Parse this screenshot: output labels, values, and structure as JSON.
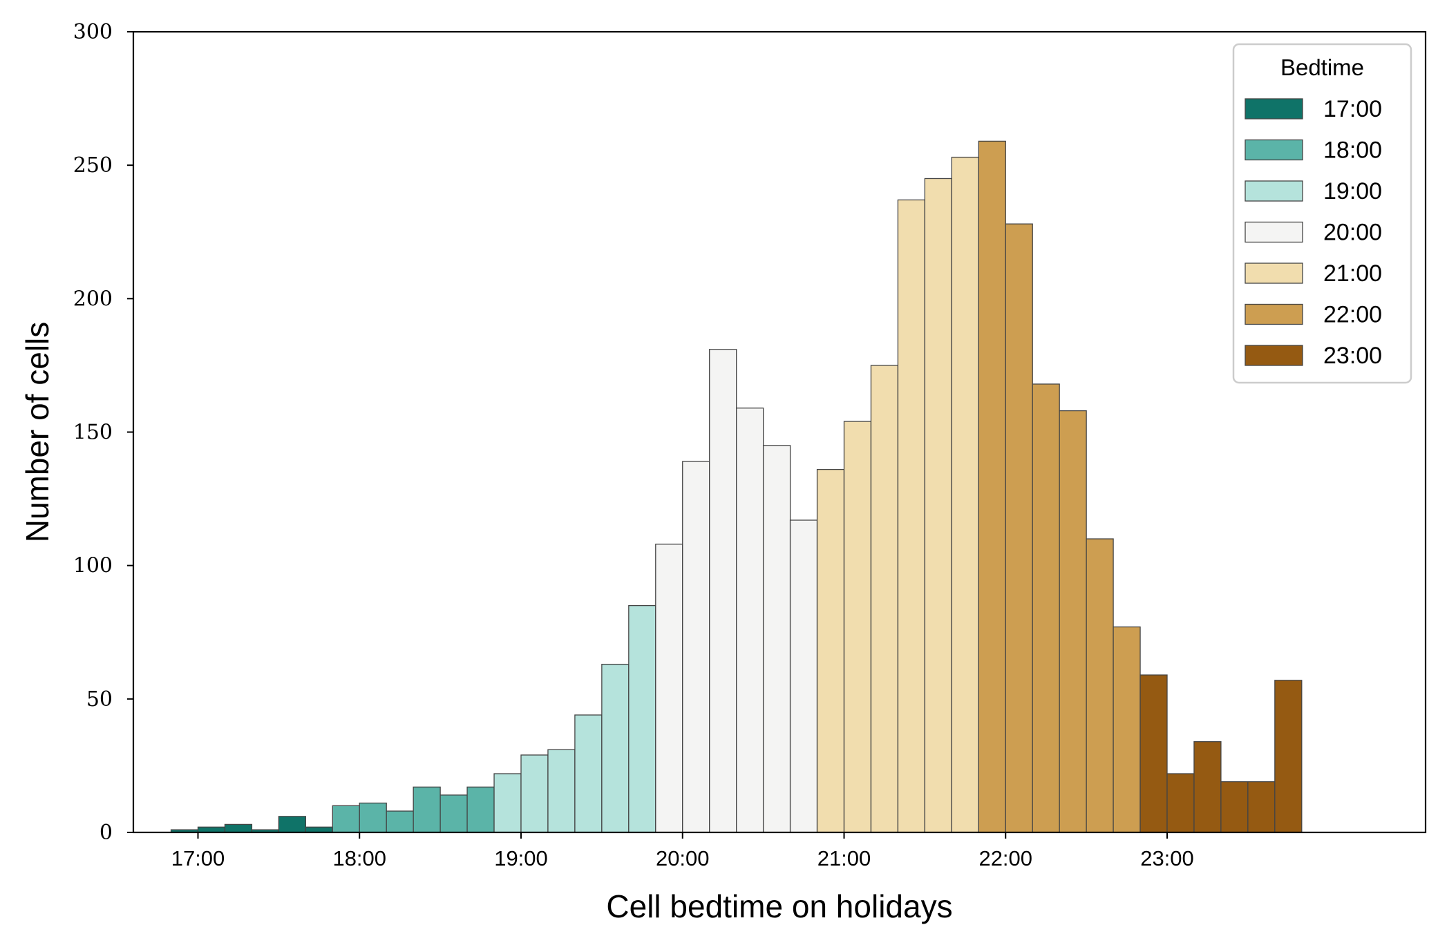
{
  "chart_data": {
    "type": "bar",
    "xlabel": "Cell bedtime on holidays",
    "ylabel": "Number of cells",
    "ylim": [
      0,
      300
    ],
    "yticks": [
      0,
      50,
      100,
      150,
      200,
      250,
      300
    ],
    "xticks": [
      "17:00",
      "18:00",
      "19:00",
      "20:00",
      "21:00",
      "22:00",
      "23:00"
    ],
    "x_hours_range": [
      16.6,
      24.6
    ],
    "bin_width_hours": 0.1667,
    "grid": false,
    "legend": {
      "title": "Bedtime",
      "placement": "top-right",
      "entries": [
        "17:00",
        "18:00",
        "19:00",
        "20:00",
        "21:00",
        "22:00",
        "23:00"
      ]
    },
    "series": [
      {
        "name": "17:00",
        "color": "#0f7368",
        "bins": [
          {
            "start": "16:50",
            "value": 1
          },
          {
            "start": "17:00",
            "value": 2
          },
          {
            "start": "17:10",
            "value": 3
          },
          {
            "start": "17:20",
            "value": 1
          },
          {
            "start": "17:30",
            "value": 6
          },
          {
            "start": "17:40",
            "value": 2
          }
        ]
      },
      {
        "name": "18:00",
        "color": "#5bb4a8",
        "bins": [
          {
            "start": "17:50",
            "value": 10
          },
          {
            "start": "18:00",
            "value": 11
          },
          {
            "start": "18:10",
            "value": 8
          },
          {
            "start": "18:20",
            "value": 17
          },
          {
            "start": "18:30",
            "value": 14
          },
          {
            "start": "18:40",
            "value": 17
          }
        ]
      },
      {
        "name": "19:00",
        "color": "#b5e3dc",
        "bins": [
          {
            "start": "18:50",
            "value": 22
          },
          {
            "start": "19:00",
            "value": 29
          },
          {
            "start": "19:10",
            "value": 31
          },
          {
            "start": "19:20",
            "value": 44
          },
          {
            "start": "19:30",
            "value": 63
          },
          {
            "start": "19:40",
            "value": 85
          }
        ]
      },
      {
        "name": "20:00",
        "color": "#f4f4f3",
        "bins": [
          {
            "start": "19:50",
            "value": 108
          },
          {
            "start": "20:00",
            "value": 139
          },
          {
            "start": "20:10",
            "value": 181
          },
          {
            "start": "20:20",
            "value": 159
          },
          {
            "start": "20:30",
            "value": 145
          },
          {
            "start": "20:40",
            "value": 117
          }
        ]
      },
      {
        "name": "21:00",
        "color": "#f1ddae",
        "bins": [
          {
            "start": "20:50",
            "value": 136
          },
          {
            "start": "21:00",
            "value": 154
          },
          {
            "start": "21:10",
            "value": 175
          },
          {
            "start": "21:20",
            "value": 237
          },
          {
            "start": "21:30",
            "value": 245
          },
          {
            "start": "21:40",
            "value": 253
          }
        ]
      },
      {
        "name": "22:00",
        "color": "#cd9e51",
        "bins": [
          {
            "start": "21:50",
            "value": 259
          },
          {
            "start": "22:00",
            "value": 228
          },
          {
            "start": "22:10",
            "value": 168
          },
          {
            "start": "22:20",
            "value": 158
          },
          {
            "start": "22:30",
            "value": 110
          },
          {
            "start": "22:40",
            "value": 77
          }
        ]
      },
      {
        "name": "23:00",
        "color": "#955a12",
        "bins": [
          {
            "start": "22:50",
            "value": 59
          },
          {
            "start": "23:00",
            "value": 22
          },
          {
            "start": "23:10",
            "value": 34
          },
          {
            "start": "23:20",
            "value": 19
          },
          {
            "start": "23:30",
            "value": 19
          },
          {
            "start": "23:40",
            "value": 57
          }
        ]
      }
    ]
  }
}
